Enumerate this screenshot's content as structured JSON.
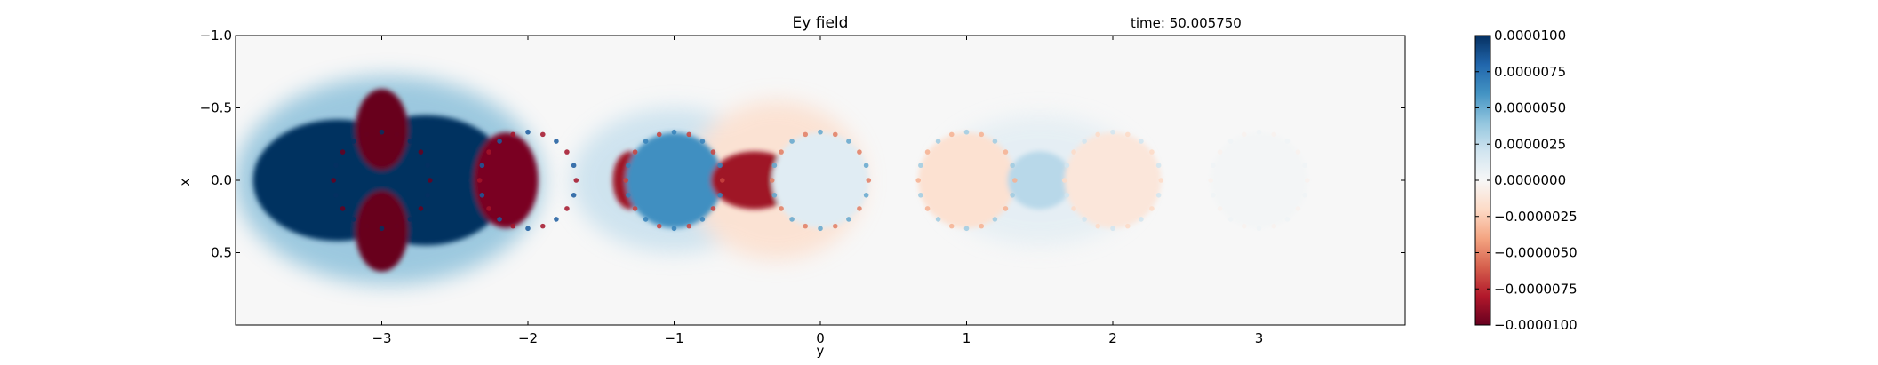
{
  "chart_data": {
    "type": "heatmap",
    "title": "Ey field",
    "annotation": "time: 50.005750",
    "xlabel": "y",
    "ylabel": "x",
    "xlim": [
      -4.0,
      4.0
    ],
    "ylim": [
      1.0,
      -1.0
    ],
    "y_inverted": true,
    "x_ticks": [
      -3,
      -2,
      -1,
      0,
      1,
      2,
      3
    ],
    "x_tick_labels": [
      "−3",
      "−2",
      "−1",
      "0",
      "1",
      "2",
      "3"
    ],
    "y_ticks": [
      -1.0,
      -0.5,
      0.0,
      0.5
    ],
    "y_tick_labels": [
      "−1.0",
      "−0.5",
      "0.0",
      "0.5"
    ],
    "colorbar": {
      "colormap": "RdBu",
      "vmin": -1e-05,
      "vmax": 1e-05,
      "ticks": [
        1e-05,
        7.5e-06,
        5e-06,
        2.5e-06,
        0.0,
        -2.5e-06,
        -5e-06,
        -7.5e-06,
        -1e-05
      ],
      "tick_labels": [
        "0.0000100",
        "0.0000075",
        "0.0000050",
        "0.0000025",
        "0.0000000",
        "−0.0000025",
        "−0.0000050",
        "−0.0000075",
        "−0.0000100"
      ],
      "colors": [
        "#67001f",
        "#b2182b",
        "#d6604d",
        "#f4a582",
        "#fddbc7",
        "#f7f7f7",
        "#d1e5f0",
        "#92c5de",
        "#4393c3",
        "#2166ac",
        "#053061"
      ]
    },
    "cylinders": {
      "centers_y": [
        -3,
        -2,
        -1,
        0,
        1,
        2,
        3
      ],
      "radius": 0.33
    },
    "field_blobs": [
      {
        "y": -3.3,
        "x": 0.0,
        "ry": 0.58,
        "rx": 0.42,
        "value": 1e-05
      },
      {
        "y": -2.7,
        "x": 0.0,
        "ry": 0.58,
        "rx": 0.45,
        "value": 1e-05
      },
      {
        "y": -3.0,
        "x": -0.35,
        "ry": 0.18,
        "rx": 0.28,
        "value": -1e-05
      },
      {
        "y": -3.0,
        "x": 0.35,
        "ry": 0.18,
        "rx": 0.28,
        "value": -1e-05
      },
      {
        "y": -2.15,
        "x": 0.0,
        "ry": 0.22,
        "rx": 0.33,
        "value": -9.5e-06
      },
      {
        "y": -1.3,
        "x": 0.0,
        "ry": 0.12,
        "rx": 0.2,
        "value": -8.5e-06
      },
      {
        "y": -1.0,
        "x": 0.0,
        "ry": 0.33,
        "rx": 0.33,
        "value": 6.2e-06
      },
      {
        "y": -0.45,
        "x": 0.0,
        "ry": 0.3,
        "rx": 0.2,
        "value": -8.5e-06
      },
      {
        "y": 0.0,
        "x": 0.0,
        "ry": 0.33,
        "rx": 0.33,
        "value": 1.2e-06
      },
      {
        "y": 1.0,
        "x": 0.0,
        "ry": 0.33,
        "rx": 0.33,
        "value": -1.6e-06
      },
      {
        "y": 1.5,
        "x": 0.0,
        "ry": 0.22,
        "rx": 0.2,
        "value": 2.8e-06
      },
      {
        "y": 2.0,
        "x": 0.0,
        "ry": 0.33,
        "rx": 0.33,
        "value": -1.2e-06
      },
      {
        "y": 3.0,
        "x": 0.0,
        "ry": 0.33,
        "rx": 0.33,
        "value": 2e-07
      }
    ]
  }
}
